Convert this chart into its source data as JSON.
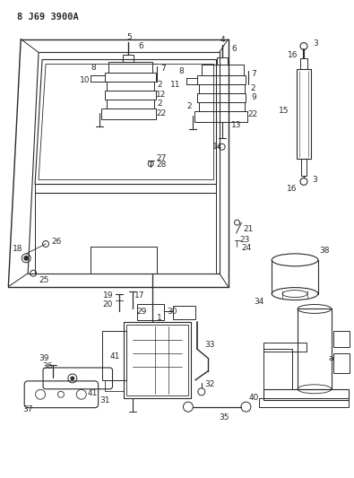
{
  "title": "8 J69 3900A",
  "bg_color": "#ffffff",
  "fig_width": 3.95,
  "fig_height": 5.33,
  "dpi": 100
}
